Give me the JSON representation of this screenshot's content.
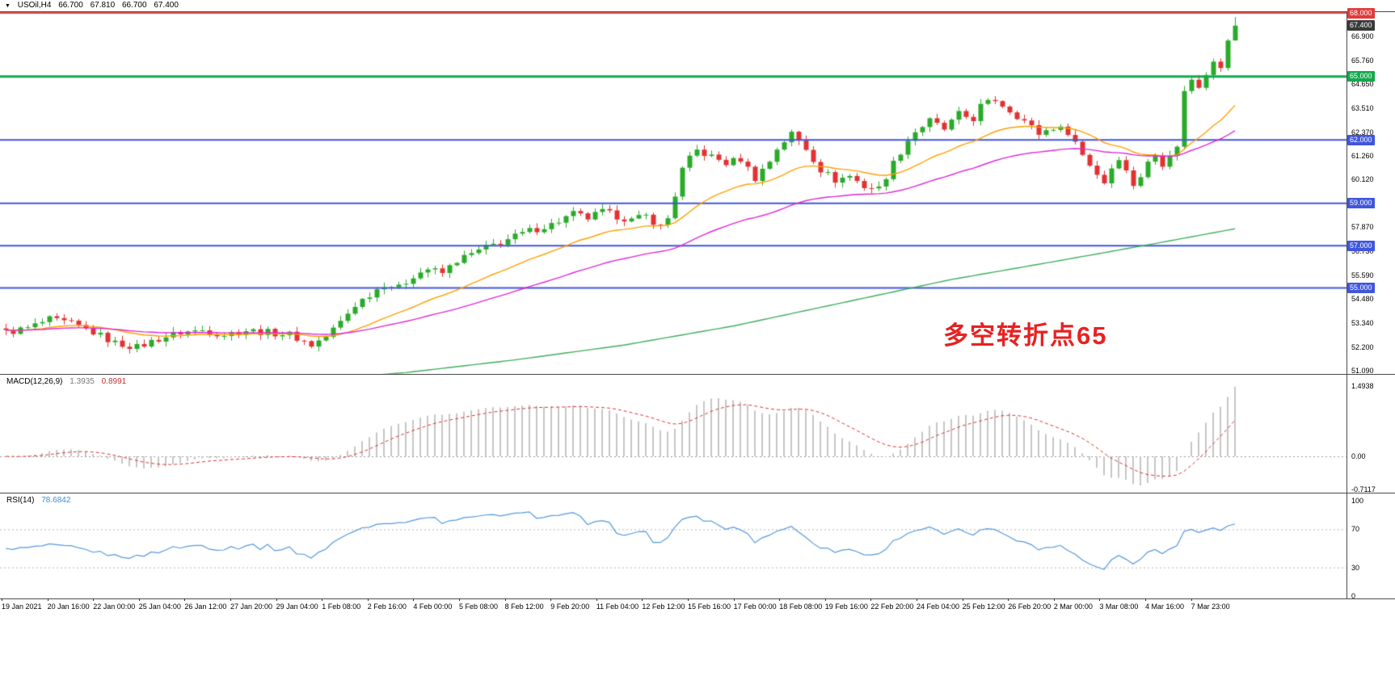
{
  "window": {
    "symbol_marker": "▼",
    "title": "USOil,H4",
    "ohlc": {
      "open": "66.700",
      "high": "67.810",
      "low": "66.700",
      "close": "67.400"
    }
  },
  "chart_data": {
    "type": "candlestick",
    "symbol": "USOil",
    "timeframe": "H4",
    "bars": 170,
    "ohlc": {
      "open": 66.7,
      "high": 67.81,
      "low": 66.7,
      "close": 67.4
    },
    "up_color": "#2aab2a",
    "down_color": "#e23232",
    "ylim": [
      50.97,
      68.08
    ],
    "close_anchors": [
      [
        0,
        52.9
      ],
      [
        3,
        53.1
      ],
      [
        6,
        53.5
      ],
      [
        9,
        53.3
      ],
      [
        12,
        52.9
      ],
      [
        15,
        52.4
      ],
      [
        18,
        52.2
      ],
      [
        21,
        52.6
      ],
      [
        24,
        52.9
      ],
      [
        27,
        53.0
      ],
      [
        30,
        52.8
      ],
      [
        33,
        53.0
      ],
      [
        36,
        52.9
      ],
      [
        39,
        52.8
      ],
      [
        42,
        52.3
      ],
      [
        44,
        52.7
      ],
      [
        46,
        53.4
      ],
      [
        48,
        54.2
      ],
      [
        50,
        54.7
      ],
      [
        52,
        55.2
      ],
      [
        54,
        55.0
      ],
      [
        56,
        55.6
      ],
      [
        58,
        55.9
      ],
      [
        60,
        55.7
      ],
      [
        62,
        56.3
      ],
      [
        64,
        56.6
      ],
      [
        66,
        56.9
      ],
      [
        69,
        57.3
      ],
      [
        72,
        57.7
      ],
      [
        75,
        58.0
      ],
      [
        78,
        58.5
      ],
      [
        80,
        58.3
      ],
      [
        82,
        58.6
      ],
      [
        84,
        58.4
      ],
      [
        86,
        58.2
      ],
      [
        88,
        58.4
      ],
      [
        90,
        57.9
      ],
      [
        91,
        58.3
      ],
      [
        92,
        59.4
      ],
      [
        93,
        60.6
      ],
      [
        94,
        61.1
      ],
      [
        95,
        61.5
      ],
      [
        97,
        61.2
      ],
      [
        99,
        60.9
      ],
      [
        101,
        61.1
      ],
      [
        103,
        60.2
      ],
      [
        105,
        61.0
      ],
      [
        106,
        61.6
      ],
      [
        108,
        62.3
      ],
      [
        110,
        61.6
      ],
      [
        112,
        60.6
      ],
      [
        114,
        60.1
      ],
      [
        116,
        60.3
      ],
      [
        118,
        59.8
      ],
      [
        120,
        59.7
      ],
      [
        122,
        60.9
      ],
      [
        124,
        62.0
      ],
      [
        125,
        62.4
      ],
      [
        127,
        62.9
      ],
      [
        129,
        62.5
      ],
      [
        131,
        63.2
      ],
      [
        133,
        63.0
      ],
      [
        134,
        63.6
      ],
      [
        136,
        63.9
      ],
      [
        138,
        63.4
      ],
      [
        140,
        62.9
      ],
      [
        142,
        62.3
      ],
      [
        144,
        62.6
      ],
      [
        146,
        62.4
      ],
      [
        147,
        61.9
      ],
      [
        148,
        61.3
      ],
      [
        150,
        60.4
      ],
      [
        151,
        60.0
      ],
      [
        152,
        60.7
      ],
      [
        153,
        61.2
      ],
      [
        154,
        60.5
      ],
      [
        155,
        59.9
      ],
      [
        156,
        60.3
      ],
      [
        157,
        60.9
      ],
      [
        158,
        61.3
      ],
      [
        159,
        60.9
      ],
      [
        160,
        61.4
      ],
      [
        161,
        61.6
      ],
      [
        162,
        64.4
      ],
      [
        163,
        64.8
      ],
      [
        164,
        64.5
      ],
      [
        165,
        65.2
      ],
      [
        166,
        65.7
      ],
      [
        167,
        65.4
      ],
      [
        168,
        66.7
      ],
      [
        169,
        67.4
      ]
    ],
    "moving_averages": [
      {
        "name": "fast-ma",
        "color": "#ffa000",
        "period": 21
      },
      {
        "name": "mid-ma",
        "color": "#e028d8",
        "period": 50
      },
      {
        "name": "slow-ma",
        "color": "#3fae5c",
        "anchors": [
          [
            40,
            50.6
          ],
          [
            55,
            51.0
          ],
          [
            70,
            51.6
          ],
          [
            85,
            52.3
          ],
          [
            100,
            53.2
          ],
          [
            115,
            54.3
          ],
          [
            130,
            55.4
          ],
          [
            145,
            56.3
          ],
          [
            158,
            57.1
          ],
          [
            169,
            57.8
          ]
        ]
      }
    ],
    "hlines": [
      {
        "price": 68.0,
        "label": "68.000",
        "color": "#e23a3a",
        "width": 2
      },
      {
        "price": 65.0,
        "label": "65.000",
        "color": "#13a94c",
        "width": 3
      },
      {
        "price": 62.0,
        "label": "62.000",
        "color": "#4056dd",
        "width": 2
      },
      {
        "price": 59.0,
        "label": "59.000",
        "color": "#4056dd",
        "width": 2
      },
      {
        "price": 57.0,
        "label": "57.000",
        "color": "#4056dd",
        "width": 2
      },
      {
        "price": 55.0,
        "label": "55.000",
        "color": "#4056dd",
        "width": 2
      }
    ],
    "price_tag": {
      "label": "67.400",
      "price": 67.4,
      "bg": "#3a3a3a"
    },
    "price_ticks": [
      "66.900",
      "65.760",
      "64.650",
      "63.510",
      "62.370",
      "61.260",
      "60.120",
      "57.870",
      "56.730",
      "55.590",
      "54.480",
      "53.340",
      "52.200",
      "51.090"
    ],
    "time_labels": [
      "19 Jan 2021",
      "20 Jan 16:00",
      "22 Jan 00:00",
      "25 Jan 04:00",
      "26 Jan 12:00",
      "27 Jan 20:00",
      "29 Jan 04:00",
      "1 Feb 08:00",
      "2 Feb 16:00",
      "4 Feb 00:00",
      "5 Feb 08:00",
      "8 Feb 12:00",
      "9 Feb 20:00",
      "11 Feb 04:00",
      "12 Feb 12:00",
      "15 Feb 16:00",
      "17 Feb 00:00",
      "18 Feb 08:00",
      "19 Feb 16:00",
      "22 Feb 20:00",
      "24 Feb 04:00",
      "25 Feb 12:00",
      "26 Feb 20:00",
      "2 Mar 00:00",
      "3 Mar 08:00",
      "4 Mar 16:00",
      "7 Mar 23:00"
    ],
    "annotation": {
      "text": "多空转折点65",
      "color": "#e62222"
    },
    "indicators": [
      {
        "name": "MACD",
        "label": "MACD(12,26,9)",
        "values": [
          "1.3935",
          "0.8991"
        ],
        "value_colors": [
          "#7a7a7a",
          "#c03030"
        ],
        "axis_labels": [
          "1.4938",
          "0.00",
          "-0.7117"
        ],
        "histogram_color": "#c6c6c6",
        "signal_color": "#dd3333"
      },
      {
        "name": "RSI",
        "label": "RSI(14)",
        "values": [
          "78.6842"
        ],
        "value_colors": [
          "#3a8fd9"
        ],
        "axis_labels": [
          "100",
          "70",
          "30",
          "0"
        ],
        "line_color": "#5599dd",
        "levels": [
          70,
          30
        ]
      }
    ]
  }
}
